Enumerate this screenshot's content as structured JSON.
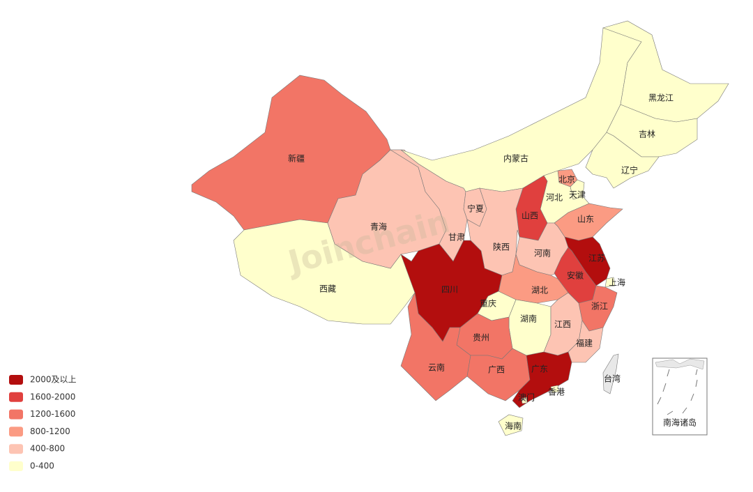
{
  "map": {
    "regions": [
      {
        "name": "新疆",
        "color": "#f27566"
      },
      {
        "name": "西藏",
        "color": "#ffffcc"
      },
      {
        "name": "青海",
        "color": "#fdc4b3"
      },
      {
        "name": "甘肃",
        "color": "#fdc4b3"
      },
      {
        "name": "内蒙古",
        "color": "#ffffcc"
      },
      {
        "name": "黑龙江",
        "color": "#ffffcc"
      },
      {
        "name": "吉林",
        "color": "#ffffcc"
      },
      {
        "name": "辽宁",
        "color": "#ffffcc"
      },
      {
        "name": "北京",
        "color": "#fb9b83"
      },
      {
        "name": "天津",
        "color": "#ffffcc"
      },
      {
        "name": "河北",
        "color": "#ffffcc"
      },
      {
        "name": "山西",
        "color": "#e0403e"
      },
      {
        "name": "山东",
        "color": "#fb9b83"
      },
      {
        "name": "宁夏",
        "color": "#fdc4b3"
      },
      {
        "name": "陕西",
        "color": "#fdc4b3"
      },
      {
        "name": "河南",
        "color": "#fdc4b3"
      },
      {
        "name": "江苏",
        "color": "#b30e0e"
      },
      {
        "name": "安徽",
        "color": "#e0403e"
      },
      {
        "name": "上海",
        "color": "#ffffcc"
      },
      {
        "name": "湖北",
        "color": "#fb9b83"
      },
      {
        "name": "四川",
        "color": "#b30e0e"
      },
      {
        "name": "重庆",
        "color": "#ffffcc"
      },
      {
        "name": "浙江",
        "color": "#f27566"
      },
      {
        "name": "湖南",
        "color": "#ffffcc"
      },
      {
        "name": "江西",
        "color": "#fdc4b3"
      },
      {
        "name": "福建",
        "color": "#fdc4b3"
      },
      {
        "name": "贵州",
        "color": "#f27566"
      },
      {
        "name": "云南",
        "color": "#f27566"
      },
      {
        "name": "广西",
        "color": "#f27566"
      },
      {
        "name": "广东",
        "color": "#b30e0e"
      },
      {
        "name": "香港",
        "color": "#ffffcc"
      },
      {
        "name": "澳门",
        "color": "#ffffcc"
      },
      {
        "name": "海南",
        "color": "#ffffcc"
      },
      {
        "name": "台湾",
        "color": "#e8e8e8"
      }
    ],
    "inset_label": "南海诸岛",
    "watermark": "Joinchain",
    "legend": [
      {
        "label": "2000及以上",
        "color": "#b30e0e"
      },
      {
        "label": "1600-2000",
        "color": "#e0403e"
      },
      {
        "label": "1200-1600",
        "color": "#f27566"
      },
      {
        "label": "800-1200",
        "color": "#fb9b83"
      },
      {
        "label": "400-800",
        "color": "#fdc4b3"
      },
      {
        "label": "0-400",
        "color": "#ffffcc"
      }
    ]
  }
}
